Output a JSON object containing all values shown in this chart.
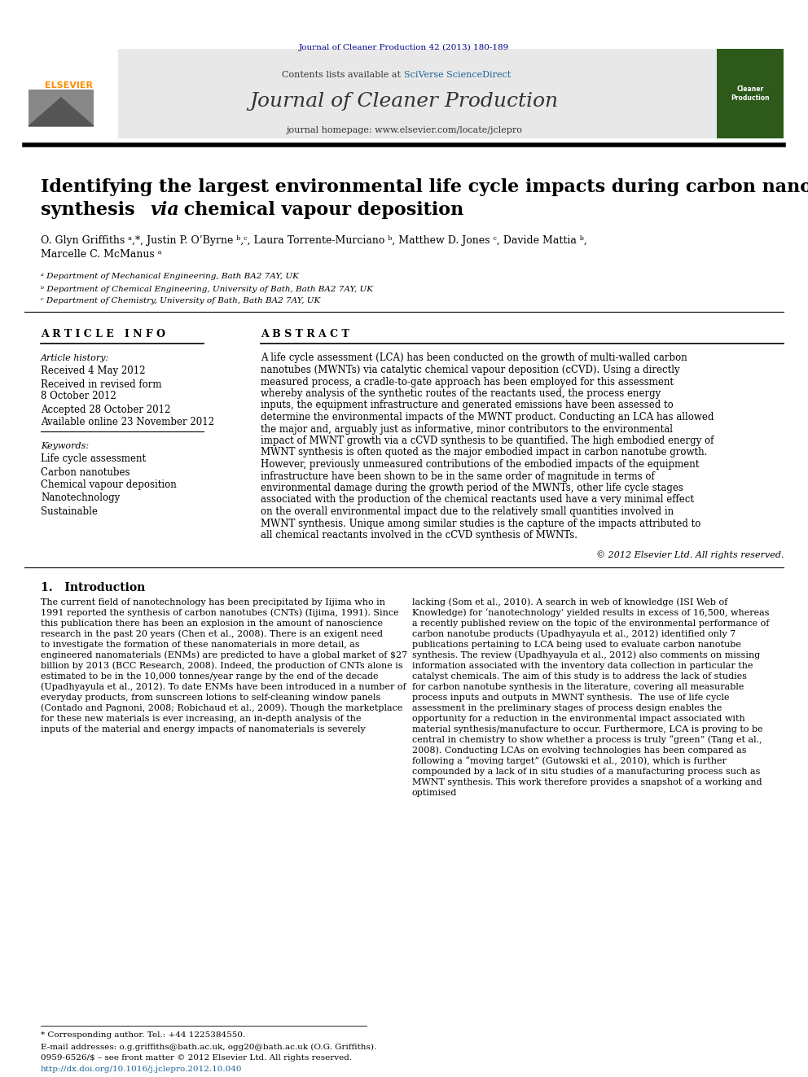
{
  "journal_header": "Journal of Cleaner Production 42 (2013) 180-189",
  "journal_name": "Journal of Cleaner Production",
  "journal_homepage": "journal homepage: www.elsevier.com/locate/jclepro",
  "contents_line": "Contents lists available at SciVerse ScienceDirect",
  "title_line1": "Identifying the largest environmental life cycle impacts during carbon nanotube",
  "title_line2": "synthesis via chemical vapour deposition",
  "title_italic_word": "via",
  "authors": "O. Glyn Griffiths ᵃ,*, Justin P. O’Byrne ᵇ,ᶜ, Laura Torrente-Murciano ᵇ, Matthew D. Jones ᶜ, Davide Mattia ᵇ,",
  "authors2": "Marcelle C. McManus ᵃ",
  "affil1": "ᵃ Department of Mechanical Engineering, Bath BA2 7AY, UK",
  "affil2": "ᵇ Department of Chemical Engineering, University of Bath, Bath BA2 7AY, UK",
  "affil3": "ᶜ Department of Chemistry, University of Bath, Bath BA2 7AY, UK",
  "article_info_title": "A R T I C L E   I N F O",
  "abstract_title": "A B S T R A C T",
  "article_history_label": "Article history:",
  "received1": "Received 4 May 2012",
  "received2": "Received in revised form",
  "received3": "8 October 2012",
  "accepted": "Accepted 28 October 2012",
  "available": "Available online 23 November 2012",
  "keywords_label": "Keywords:",
  "keyword1": "Life cycle assessment",
  "keyword2": "Carbon nanotubes",
  "keyword3": "Chemical vapour deposition",
  "keyword4": "Nanotechnology",
  "keyword5": "Sustainable",
  "abstract_text": "A life cycle assessment (LCA) has been conducted on the growth of multi-walled carbon nanotubes (MWNTs) via catalytic chemical vapour deposition (cCVD). Using a directly measured process, a cradle-to-gate approach has been employed for this assessment whereby analysis of the synthetic routes of the reactants used, the process energy inputs, the equipment infrastructure and generated emissions have been assessed to determine the environmental impacts of the MWNT product. Conducting an LCA has allowed the major and, arguably just as informative, minor contributors to the environmental impact of MWNT growth via a cCVD synthesis to be quantified. The high embodied energy of MWNT synthesis is often quoted as the major embodied impact in carbon nanotube growth. However, previously unmeasured contributions of the embodied impacts of the equipment infrastructure have been shown to be in the same order of magnitude in terms of environmental damage during the growth period of the MWNTs, other life cycle stages associated with the production of the chemical reactants used have a very minimal effect on the overall environmental impact due to the relatively small quantities involved in MWNT synthesis. Unique among similar studies is the capture of the impacts attributed to all chemical reactants involved in the cCVD synthesis of MWNTs.",
  "copyright": "© 2012 Elsevier Ltd. All rights reserved.",
  "intro_heading": "1.   Introduction",
  "intro_col1": "The current field of nanotechnology has been precipitated by Iijima who in 1991 reported the synthesis of carbon nanotubes (CNTs) (Iijima, 1991). Since this publication there has been an explosion in the amount of nanoscience research in the past 20 years (Chen et al., 2008). There is an exigent need to investigate the formation of these nanomaterials in more detail, as engineered nanomaterials (ENMs) are predicted to have a global market of $27 billion by 2013 (BCC Research, 2008). Indeed, the production of CNTs alone is estimated to be in the 10,000 tonnes/year range by the end of the decade (Upadhyayula et al., 2012). To date ENMs have been introduced in a number of everyday products, from sunscreen lotions to self-cleaning window panels (Contado and Pagnoni, 2008; Robichaud et al., 2009). Though the marketplace for these new materials is ever increasing, an in-depth analysis of the inputs of the material and energy impacts of nanomaterials is severely",
  "intro_col2": "lacking (Som et al., 2010). A search in web of knowledge (ISI Web of Knowledge) for ‘nanotechnology’ yielded results in excess of 16,500, whereas a recently published review on the topic of the environmental performance of carbon nanotube products (Upadhyayula et al., 2012) identified only 7 publications pertaining to LCA being used to evaluate carbon nanotube synthesis. The review (Upadhyayula et al., 2012) also comments on missing information associated with the inventory data collection in particular the catalyst chemicals. The aim of this study is to address the lack of studies for carbon nanotube synthesis in the literature, covering all measurable process inputs and outputs in MWNT synthesis.\n\nThe use of life cycle assessment in the preliminary stages of process design enables the opportunity for a reduction in the environmental impact associated with material synthesis/manufacture to occur. Furthermore, LCA is proving to be central in chemistry to show whether a process is truly “green” (Tang et al., 2008). Conducting LCAs on evolving technologies has been compared as following a “moving target” (Gutowski et al., 2010), which is further compounded by a lack of in situ studies of a manufacturing process such as MWNT synthesis. This work therefore provides a snapshot of a working and optimised",
  "footnote1": "* Corresponding author. Tel.: +44 1225384550.",
  "footnote2": "E-mail addresses: o.g.griffiths@bath.ac.uk, ogg20@bath.ac.uk (O.G. Griffiths).",
  "issn_line": "0959-6526/$ – see front matter © 2012 Elsevier Ltd. All rights reserved.",
  "doi_line": "http://dx.doi.org/10.1016/j.jclepro.2012.10.040",
  "elsevier_color": "#FF8C00",
  "header_color": "#00008B",
  "bg_color": "#FFFFFF",
  "text_color": "#000000",
  "gray_bg": "#F0F0F0"
}
